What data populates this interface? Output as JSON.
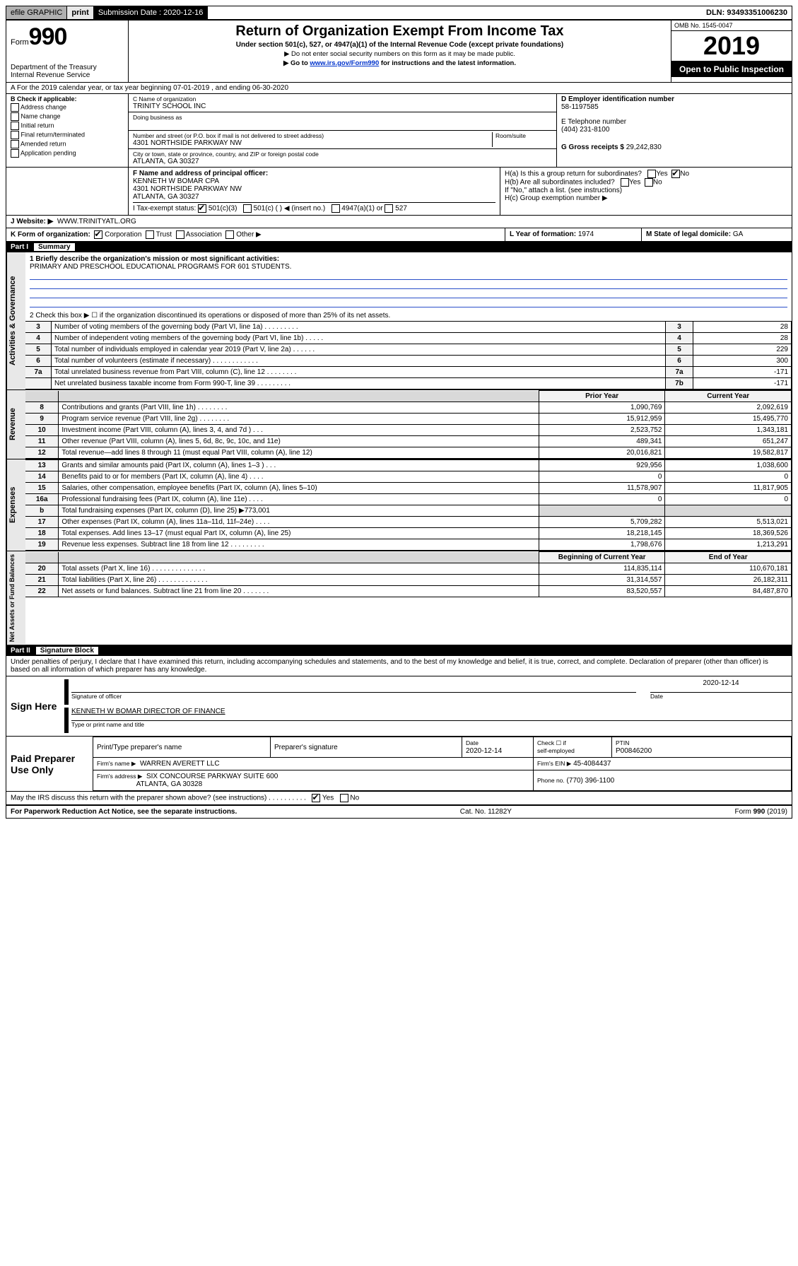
{
  "topbar": {
    "efile": "efile GRAPHIC",
    "print": "print",
    "sub_label": "Submission Date :",
    "sub_date": "2020-12-16",
    "dln": "DLN: 93493351006230"
  },
  "header": {
    "form_word": "Form",
    "form_num": "990",
    "dept": "Department of the Treasury\nInternal Revenue Service",
    "title": "Return of Organization Exempt From Income Tax",
    "subtitle": "Under section 501(c), 527, or 4947(a)(1) of the Internal Revenue Code (except private foundations)",
    "note1": "▶ Do not enter social security numbers on this form as it may be made public.",
    "note2_pre": "▶ Go to ",
    "note2_link": "www.irs.gov/Form990",
    "note2_post": " for instructions and the latest information.",
    "omb": "OMB No. 1545-0047",
    "year": "2019",
    "inspect": "Open to Public Inspection"
  },
  "lineA": "A For the 2019 calendar year, or tax year beginning 07-01-2019   , and ending 06-30-2020",
  "boxB": {
    "hdr": "B Check if applicable:",
    "items": [
      "Address change",
      "Name change",
      "Initial return",
      "Final return/terminated",
      "Amended return",
      "Application pending"
    ]
  },
  "boxC": {
    "name_label": "C Name of organization",
    "name": "TRINITY SCHOOL INC",
    "dba_label": "Doing business as",
    "addr_label": "Number and street (or P.O. box if mail is not delivered to street address)",
    "room_label": "Room/suite",
    "addr": "4301 NORTHSIDE PARKWAY NW",
    "city_label": "City or town, state or province, country, and ZIP or foreign postal code",
    "city": "ATLANTA, GA  30327"
  },
  "boxD": {
    "label": "D Employer identification number",
    "val": "58-1197585"
  },
  "boxE": {
    "label": "E Telephone number",
    "val": "(404) 231-8100"
  },
  "boxG": {
    "label": "G Gross receipts $",
    "val": "29,242,830"
  },
  "boxF": {
    "label": "F Name and address of principal officer:",
    "line1": "KENNETH W BOMAR CPA",
    "line2": "4301 NORTHSIDE PARKWAY NW",
    "line3": "ATLANTA, GA  30327"
  },
  "boxH": {
    "a": "H(a)  Is this a group return for subordinates?",
    "b": "H(b)  Are all subordinates included?",
    "bnote": "If \"No,\" attach a list. (see instructions)",
    "c": "H(c)  Group exemption number ▶",
    "yes": "Yes",
    "no": "No"
  },
  "boxI": {
    "label": "I Tax-exempt status:",
    "o1": "501(c)(3)",
    "o2": "501(c) (  ) ◀ (insert no.)",
    "o3": "4947(a)(1) or",
    "o4": "527"
  },
  "boxJ": {
    "label": "J   Website: ▶",
    "val": "WWW.TRINITYATL.ORG"
  },
  "boxK": {
    "label": "K Form of organization:",
    "o1": "Corporation",
    "o2": "Trust",
    "o3": "Association",
    "o4": "Other ▶"
  },
  "boxL": {
    "label": "L Year of formation:",
    "val": "1974"
  },
  "boxM": {
    "label": "M State of legal domicile:",
    "val": "GA"
  },
  "part1": {
    "num": "Part I",
    "title": "Summary"
  },
  "summary": {
    "l1_label": "1  Briefly describe the organization's mission or most significant activities:",
    "l1_text": "PRIMARY AND PRESCHOOL EDUCATIONAL PROGRAMS FOR 601 STUDENTS.",
    "l2": "2   Check this box ▶ ☐  if the organization discontinued its operations or disposed of more than 25% of its net assets.",
    "rows_top": [
      {
        "n": "3",
        "d": "Number of voting members of the governing body (Part VI, line 1a)   .    .    .    .    .    .    .    .    .",
        "box": "3",
        "v": "28"
      },
      {
        "n": "4",
        "d": "Number of independent voting members of the governing body (Part VI, line 1b)    .    .    .    .    .",
        "box": "4",
        "v": "28"
      },
      {
        "n": "5",
        "d": "Total number of individuals employed in calendar year 2019 (Part V, line 2a)    .    .    .    .    .    .",
        "box": "5",
        "v": "229"
      },
      {
        "n": "6",
        "d": "Total number of volunteers (estimate if necessary)    .    .    .    .    .    .    .    .    .    .    .    .",
        "box": "6",
        "v": "300"
      },
      {
        "n": "7a",
        "d": "Total unrelated business revenue from Part VIII, column (C), line 12    .    .    .    .    .    .    .    .",
        "box": "7a",
        "v": "-171"
      },
      {
        "n": "",
        "d": "Net unrelated business taxable income from Form 990-T, line 39    .    .    .    .    .    .    .    .    .",
        "box": "7b",
        "v": "-171"
      }
    ],
    "col_prior": "Prior Year",
    "col_current": "Current Year",
    "col_boc": "Beginning of Current Year",
    "col_eoy": "End of Year",
    "rev": [
      {
        "n": "8",
        "d": "Contributions and grants (Part VIII, line 1h)    .    .    .    .    .    .    .    .",
        "p": "1,090,769",
        "c": "2,092,619"
      },
      {
        "n": "9",
        "d": "Program service revenue (Part VIII, line 2g)    .    .    .    .    .    .    .    .",
        "p": "15,912,959",
        "c": "15,495,770"
      },
      {
        "n": "10",
        "d": "Investment income (Part VIII, column (A), lines 3, 4, and 7d )    .    .    .",
        "p": "2,523,752",
        "c": "1,343,181"
      },
      {
        "n": "11",
        "d": "Other revenue (Part VIII, column (A), lines 5, 6d, 8c, 9c, 10c, and 11e)",
        "p": "489,341",
        "c": "651,247"
      },
      {
        "n": "12",
        "d": "Total revenue—add lines 8 through 11 (must equal Part VIII, column (A), line 12)",
        "p": "20,016,821",
        "c": "19,582,817"
      }
    ],
    "exp": [
      {
        "n": "13",
        "d": "Grants and similar amounts paid (Part IX, column (A), lines 1–3 )    .    .    .",
        "p": "929,956",
        "c": "1,038,600"
      },
      {
        "n": "14",
        "d": "Benefits paid to or for members (Part IX, column (A), line 4)    .    .    .    .",
        "p": "0",
        "c": "0"
      },
      {
        "n": "15",
        "d": "Salaries, other compensation, employee benefits (Part IX, column (A), lines 5–10)",
        "p": "11,578,907",
        "c": "11,817,905"
      },
      {
        "n": "16a",
        "d": "Professional fundraising fees (Part IX, column (A), line 11e)    .    .    .    .",
        "p": "0",
        "c": "0"
      },
      {
        "n": "b",
        "d": "Total fundraising expenses (Part IX, column (D), line 25) ▶773,001",
        "p": "",
        "c": "",
        "shade": true
      },
      {
        "n": "17",
        "d": "Other expenses (Part IX, column (A), lines 11a–11d, 11f–24e)    .    .    .    .",
        "p": "5,709,282",
        "c": "5,513,021"
      },
      {
        "n": "18",
        "d": "Total expenses. Add lines 13–17 (must equal Part IX, column (A), line 25)",
        "p": "18,218,145",
        "c": "18,369,526"
      },
      {
        "n": "19",
        "d": "Revenue less expenses. Subtract line 18 from line 12    .    .    .    .    .    .    .    .    .",
        "p": "1,798,676",
        "c": "1,213,291"
      }
    ],
    "net": [
      {
        "n": "20",
        "d": "Total assets (Part X, line 16)    .    .    .    .    .    .    .    .    .    .    .    .    .    .",
        "p": "114,835,114",
        "c": "110,670,181"
      },
      {
        "n": "21",
        "d": "Total liabilities (Part X, line 26)    .    .    .    .    .    .    .    .    .    .    .    .    .",
        "p": "31,314,557",
        "c": "26,182,311"
      },
      {
        "n": "22",
        "d": "Net assets or fund balances. Subtract line 21 from line 20    .    .    .    .    .    .    .",
        "p": "83,520,557",
        "c": "84,487,870"
      }
    ],
    "tabs": {
      "gov": "Activities & Governance",
      "rev": "Revenue",
      "exp": "Expenses",
      "net": "Net Assets or Fund Balances"
    }
  },
  "part2": {
    "num": "Part II",
    "title": "Signature Block"
  },
  "sig": {
    "perjury": "Under penalties of perjury, I declare that I have examined this return, including accompanying schedules and statements, and to the best of my knowledge and belief, it is true, correct, and complete. Declaration of preparer (other than officer) is based on all information of which preparer has any knowledge.",
    "sign_here": "Sign Here",
    "sig_officer": "Signature of officer",
    "date": "Date",
    "date_val": "2020-12-14",
    "name_title": "KENNETH W BOMAR  DIRECTOR OF FINANCE",
    "type_name": "Type or print name and title",
    "paid": "Paid Preparer Use Only",
    "h1": "Print/Type preparer's name",
    "h2": "Preparer's signature",
    "h3": "Date",
    "h4_a": "Check ☐ if",
    "h4_b": "self-employed",
    "h5": "PTIN",
    "date2": "2020-12-14",
    "ptin": "P00846200",
    "firm_name_l": "Firm's name     ▶",
    "firm_name": "WARREN AVERETT LLC",
    "firm_ein_l": "Firm's EIN ▶",
    "firm_ein": "45-4084437",
    "firm_addr_l": "Firm's address ▶",
    "firm_addr1": "SIX CONCOURSE PARKWAY SUITE 600",
    "firm_addr2": "ATLANTA, GA  30328",
    "phone_l": "Phone no.",
    "phone": "(770) 396-1100",
    "discuss": "May the IRS discuss this return with the preparer shown above? (see instructions)    .    .    .    .    .    .    .    .    .    .",
    "yes": "Yes",
    "no": "No"
  },
  "footer": {
    "pra": "For Paperwork Reduction Act Notice, see the separate instructions.",
    "cat": "Cat. No. 11282Y",
    "form": "Form 990 (2019)"
  }
}
